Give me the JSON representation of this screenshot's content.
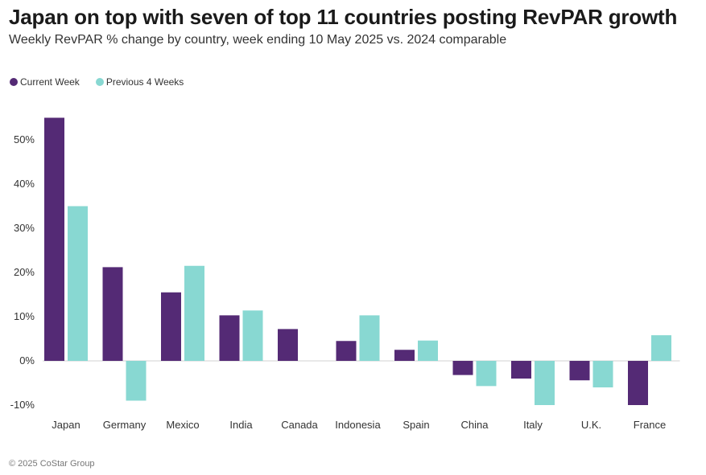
{
  "title": "Japan on top with seven of top 11 countries posting RevPAR growth",
  "subtitle": "Weekly RevPAR % change by country, week ending 10 May 2025 vs. 2024 comparable",
  "footer": "© 2025 CoStar Group",
  "chart_data": {
    "type": "bar",
    "categories": [
      "Japan",
      "Germany",
      "Mexico",
      "India",
      "Canada",
      "Indonesia",
      "Spain",
      "China",
      "Italy",
      "U.K.",
      "France"
    ],
    "series": [
      {
        "name": "Current Week",
        "color": "#542a75",
        "values": [
          55.0,
          21.2,
          15.5,
          10.3,
          7.2,
          4.5,
          2.5,
          -3.2,
          -4.0,
          -4.4,
          -10.0
        ]
      },
      {
        "name": "Previous 4 Weeks",
        "color": "#88d8d2",
        "values": [
          35.0,
          -9.0,
          21.5,
          11.4,
          null,
          10.3,
          4.6,
          -5.7,
          -10.0,
          -6.0,
          5.8
        ]
      }
    ],
    "yticks": [
      "50%",
      "40%",
      "30%",
      "20%",
      "10%",
      "0%",
      "-10%"
    ],
    "ytick_values": [
      50,
      40,
      30,
      20,
      10,
      0,
      -10
    ],
    "ylim": [
      -12,
      60
    ],
    "legend_position": "top-left",
    "grid": false
  }
}
